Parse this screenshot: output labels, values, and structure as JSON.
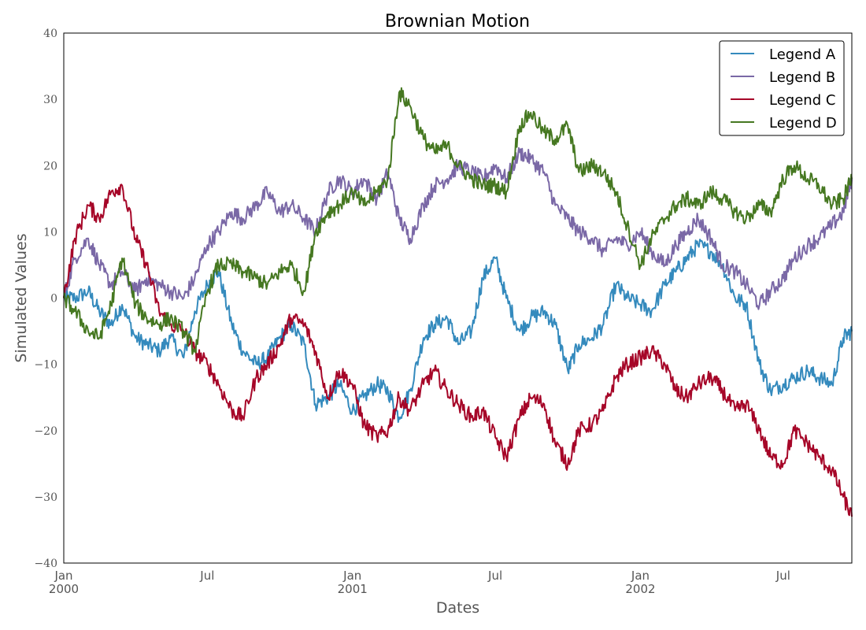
{
  "chart_data": {
    "type": "line",
    "title": "Brownian Motion",
    "xlabel": "Dates",
    "ylabel": "Simulated Values",
    "xlim": [
      "2000-01-01",
      "2002-09-26"
    ],
    "ylim": [
      -40,
      40
    ],
    "yticks": [
      {
        "value": 40,
        "label": "40"
      },
      {
        "value": 30,
        "label": "30"
      },
      {
        "value": 20,
        "label": "20"
      },
      {
        "value": 10,
        "label": "10"
      },
      {
        "value": 0,
        "label": "0"
      },
      {
        "value": -10,
        "label": "−10"
      },
      {
        "value": -20,
        "label": "−20"
      },
      {
        "value": -30,
        "label": "−30"
      },
      {
        "value": -40,
        "label": "−40"
      }
    ],
    "xticks": [
      {
        "date": "2000-01-01",
        "label": "Jan",
        "sublabel": "2000"
      },
      {
        "date": "2000-07-01",
        "label": "Jul",
        "sublabel": ""
      },
      {
        "date": "2001-01-01",
        "label": "Jan",
        "sublabel": "2001"
      },
      {
        "date": "2001-07-01",
        "label": "Jul",
        "sublabel": ""
      },
      {
        "date": "2002-01-01",
        "label": "Jan",
        "sublabel": "2002"
      },
      {
        "date": "2002-07-01",
        "label": "Jul",
        "sublabel": ""
      }
    ],
    "grid": false,
    "legend_position": "top-right",
    "x": [
      "2000-01-01",
      "2000-01-15",
      "2000-02-01",
      "2000-02-15",
      "2000-03-01",
      "2000-03-15",
      "2000-04-01",
      "2000-04-15",
      "2000-05-01",
      "2000-05-15",
      "2000-06-01",
      "2000-06-15",
      "2000-07-01",
      "2000-07-15",
      "2000-08-01",
      "2000-08-15",
      "2000-09-01",
      "2000-09-15",
      "2000-10-01",
      "2000-10-15",
      "2000-11-01",
      "2000-11-15",
      "2000-12-01",
      "2000-12-15",
      "2001-01-01",
      "2001-01-15",
      "2001-02-01",
      "2001-02-15",
      "2001-03-01",
      "2001-03-15",
      "2001-04-01",
      "2001-04-15",
      "2001-05-01",
      "2001-05-15",
      "2001-06-01",
      "2001-06-15",
      "2001-07-01",
      "2001-07-15",
      "2001-08-01",
      "2001-08-15",
      "2001-09-01",
      "2001-09-15",
      "2001-10-01",
      "2001-10-15",
      "2001-11-01",
      "2001-11-15",
      "2001-12-01",
      "2001-12-15",
      "2002-01-01",
      "2002-01-15",
      "2002-02-01",
      "2002-02-15",
      "2002-03-01",
      "2002-03-15",
      "2002-04-01",
      "2002-04-15",
      "2002-05-01",
      "2002-05-15",
      "2002-06-01",
      "2002-06-15",
      "2002-07-01",
      "2002-07-15",
      "2002-08-01",
      "2002-08-15",
      "2002-09-01",
      "2002-09-15",
      "2002-09-26"
    ],
    "series": [
      {
        "name": "Legend A",
        "color": "#348ABD",
        "values": [
          0,
          0,
          1,
          -2,
          -4,
          -1,
          -6,
          -7,
          -8,
          -6,
          -9,
          -2,
          2,
          4,
          -4,
          -8,
          -10,
          -9,
          -6,
          -4,
          -7,
          -16,
          -15,
          -13,
          -17,
          -15,
          -13,
          -14,
          -18,
          -14,
          -6,
          -4,
          -3,
          -7,
          -5,
          3,
          6,
          0,
          -5,
          -3,
          -2,
          -4,
          -11,
          -7,
          -6,
          -4,
          2,
          0,
          -1,
          -2,
          2,
          4,
          6,
          8,
          7,
          5,
          0,
          -1,
          -10,
          -14,
          -13,
          -12,
          -11,
          -12,
          -13,
          -6,
          -5
        ]
      },
      {
        "name": "Legend B",
        "color": "#7A68A6",
        "values": [
          0,
          6,
          9,
          5,
          2,
          4,
          1,
          3,
          2,
          1,
          0,
          3,
          8,
          10,
          13,
          12,
          14,
          16,
          13,
          14,
          12,
          10,
          16,
          18,
          16,
          18,
          15,
          19,
          12,
          9,
          14,
          17,
          18,
          20,
          19,
          18,
          20,
          18,
          22,
          21,
          19,
          14,
          12,
          10,
          9,
          7,
          9,
          8,
          10,
          7,
          5,
          8,
          10,
          12,
          9,
          5,
          4,
          2,
          -1,
          1,
          3,
          6,
          8,
          9,
          11,
          13,
          18
        ]
      },
      {
        "name": "Legend C",
        "color": "#A60628",
        "values": [
          0,
          9,
          14,
          12,
          16,
          17,
          9,
          5,
          -2,
          -4,
          -5,
          -8,
          -10,
          -13,
          -17,
          -18,
          -12,
          -10,
          -7,
          -3,
          -4,
          -8,
          -15,
          -11,
          -13,
          -19,
          -21,
          -20,
          -15,
          -17,
          -13,
          -11,
          -14,
          -16,
          -18,
          -17,
          -21,
          -24,
          -18,
          -15,
          -16,
          -22,
          -25,
          -20,
          -19,
          -17,
          -12,
          -10,
          -9,
          -8,
          -10,
          -14,
          -15,
          -13,
          -12,
          -14,
          -17,
          -16,
          -20,
          -24,
          -25,
          -20,
          -22,
          -24,
          -26,
          -30,
          -33
        ]
      },
      {
        "name": "Legend D",
        "color": "#467821",
        "values": [
          0,
          -2,
          -5,
          -6,
          -1,
          6,
          -1,
          -3,
          -4,
          -3,
          -5,
          -8,
          1,
          5,
          5,
          4,
          3,
          2,
          4,
          5,
          1,
          10,
          13,
          14,
          16,
          14,
          16,
          18,
          31,
          29,
          24,
          22,
          23,
          20,
          18,
          17,
          17,
          16,
          26,
          28,
          25,
          24,
          26,
          19,
          20,
          19,
          16,
          11,
          5,
          9,
          12,
          14,
          15,
          14,
          16,
          15,
          13,
          12,
          14,
          13,
          18,
          20,
          18,
          17,
          14,
          15,
          18
        ]
      }
    ]
  }
}
